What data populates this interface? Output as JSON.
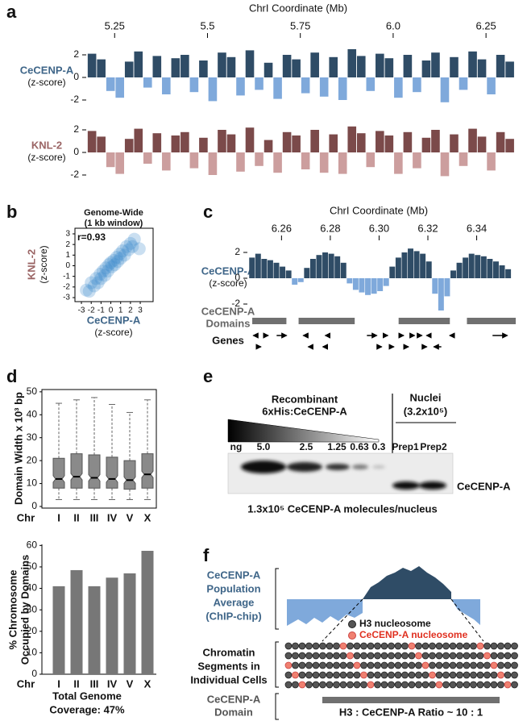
{
  "panel_labels": [
    "a",
    "b",
    "c",
    "d",
    "e",
    "f"
  ],
  "chart_data": [
    {
      "type": "track",
      "title": "ChrI Coordinate (Mb)",
      "xlim": [
        5.18,
        6.33
      ],
      "xticks": [
        5.25,
        5.5,
        5.75,
        {
          "value": 6,
          "label": "6.0"
        },
        6.25
      ],
      "ylim": [
        -3,
        3
      ],
      "yticks": [
        -2,
        0,
        2
      ],
      "x": [
        5.19,
        5.215,
        5.24,
        5.265,
        5.29,
        5.315,
        5.34,
        5.365,
        5.39,
        5.415,
        5.44,
        5.465,
        5.49,
        5.515,
        5.54,
        5.565,
        5.59,
        5.615,
        5.64,
        5.665,
        5.69,
        5.715,
        5.74,
        5.765,
        5.79,
        5.815,
        5.84,
        5.865,
        5.89,
        5.915,
        5.94,
        5.965,
        5.99,
        6.015,
        6.04,
        6.065,
        6.09,
        6.115,
        6.14,
        6.165,
        6.19,
        6.215,
        6.24,
        6.265,
        6.29,
        6.315
      ],
      "series": [
        {
          "name": "CeCENP-A",
          "unit": "(z-score)",
          "color": "#2f4c66",
          "neg_color": "#7fa9db",
          "label_color": "#3e6588",
          "values": [
            2.1,
            1.6,
            -1.2,
            -1.8,
            1.4,
            2.3,
            -0.9,
            1.9,
            -1.5,
            1.7,
            2.0,
            -1.3,
            1.5,
            -2.1,
            2.2,
            1.8,
            -1.6,
            2.4,
            -1.1,
            1.3,
            -1.9,
            2.0,
            1.6,
            -1.4,
            2.2,
            -1.7,
            1.8,
            -2.0,
            2.5,
            1.9,
            -1.2,
            2.1,
            1.7,
            -1.8,
            2.0,
            -1.3,
            1.5,
            2.2,
            -2.2,
            1.8,
            -1.1,
            2.3,
            1.6,
            -1.5,
            2.0,
            1.4
          ]
        },
        {
          "name": "KNL-2",
          "unit": "(z-score)",
          "color": "#7b4a4a",
          "neg_color": "#cc9e9e",
          "label_color": "#9a6464",
          "values": [
            1.9,
            1.4,
            -1.3,
            -1.9,
            1.2,
            2.1,
            -1.0,
            1.7,
            -1.6,
            1.5,
            1.8,
            -1.4,
            1.3,
            -2.0,
            2.0,
            1.6,
            -1.7,
            2.2,
            -1.2,
            1.1,
            -1.8,
            1.8,
            1.5,
            -1.5,
            2.0,
            -1.8,
            1.6,
            -1.9,
            2.3,
            1.7,
            -1.3,
            1.9,
            1.5,
            -1.9,
            1.8,
            -1.4,
            1.3,
            2.0,
            -2.1,
            1.6,
            -1.2,
            2.1,
            1.4,
            -1.6,
            1.8,
            1.2
          ]
        }
      ]
    },
    {
      "type": "scatter",
      "title": "Genome-Wide",
      "subtitle": "(1 kb window)",
      "annotation": "r=0.93",
      "xlabel": "CeCENP-A",
      "xlabel_unit": "(z-score)",
      "xlabel_color": "#3e6588",
      "ylabel": "KNL-2",
      "ylabel_unit": "(z-score)",
      "ylabel_color": "#9a6464",
      "xlim": [
        -3.66,
        4.31
      ],
      "ylim": [
        -3.38,
        3.53
      ],
      "xticks": [
        -3,
        -2,
        -1,
        0,
        1,
        2,
        3
      ],
      "yticks": [
        -3,
        -2,
        -1,
        0,
        1,
        2,
        3
      ],
      "color": "#3f8ccb",
      "x": [
        -2.5,
        -2.2,
        -2.0,
        -1.7,
        -1.5,
        -1.3,
        -1.1,
        -1.0,
        -0.8,
        -0.6,
        -0.5,
        -0.3,
        -0.2,
        0,
        0.1,
        0.3,
        0.4,
        0.6,
        0.7,
        0.9,
        1.0,
        1.2,
        1.4,
        1.6,
        1.8,
        2.0,
        2.2,
        2.4,
        2.9
      ],
      "y": [
        -2.3,
        -2.4,
        -1.6,
        -1.9,
        -1.2,
        -1.6,
        -0.8,
        -1.2,
        -0.5,
        -0.9,
        -0.2,
        -0.5,
        0.1,
        0.3,
        -0.1,
        0.5,
        0.1,
        0.8,
        0.4,
        1.1,
        0.7,
        1.4,
        1.0,
        1.8,
        1.5,
        2.1,
        1.8,
        2.5,
        1.6
      ]
    },
    {
      "type": "track",
      "title": "ChrI Coordinate (Mb)",
      "xlim": [
        6.247,
        6.356
      ],
      "xticks": [
        6.26,
        6.28,
        {
          "value": 6.3,
          "label": "6.30"
        },
        6.32,
        6.34
      ],
      "ylim": [
        -3,
        3
      ],
      "yticks": [
        -2,
        0,
        2
      ],
      "x": [
        6.248,
        6.2505,
        6.253,
        6.2555,
        6.258,
        6.2605,
        6.263,
        6.2655,
        6.268,
        6.2705,
        6.273,
        6.2755,
        6.278,
        6.2805,
        6.283,
        6.2855,
        6.288,
        6.2905,
        6.293,
        6.2955,
        6.298,
        6.3005,
        6.303,
        6.3055,
        6.308,
        6.3105,
        6.313,
        6.3155,
        6.318,
        6.3205,
        6.323,
        6.3255,
        6.328,
        6.3305,
        6.333,
        6.3355,
        6.338,
        6.3405,
        6.343,
        6.3455,
        6.348,
        6.3505,
        6.353
      ],
      "series": [
        {
          "name": "CeCENP-A",
          "unit": "(z-score)",
          "color": "#2f4c66",
          "neg_color": "#7fa9db",
          "label_color": "#3e6588",
          "values": [
            1.6,
            1.9,
            1.5,
            1.4,
            1.2,
            0.9,
            0.6,
            -0.5,
            -0.3,
            0.8,
            1.5,
            1.8,
            2.0,
            1.9,
            1.7,
            1.2,
            -0.4,
            -0.9,
            -1.1,
            -1.3,
            -1.2,
            -1.0,
            -0.6,
            0.9,
            1.6,
            2.0,
            2.3,
            2.1,
            1.9,
            1.3,
            -1.2,
            -2.5,
            -1.4,
            0.6,
            1.2,
            1.6,
            1.9,
            1.8,
            1.7,
            1.5,
            1.3,
            1.0,
            0.7
          ]
        }
      ],
      "domains": {
        "label": [
          "CeCENP-A",
          "Domains"
        ],
        "color": "#707070",
        "ranges": [
          [
            6.248,
            6.262
          ],
          [
            6.267,
            6.29
          ],
          [
            6.308,
            6.329
          ],
          [
            6.336,
            6.356
          ]
        ]
      },
      "genes": {
        "label": "Genes",
        "items": [
          {
            "start": 6.2495,
            "end": 6.2485
          },
          {
            "start": 6.2505,
            "end": 6.2515
          },
          {
            "start": 6.2525,
            "end": 6.2545
          },
          {
            "start": 6.258,
            "end": 6.262
          },
          {
            "start": 6.2705,
            "end": 6.269
          },
          {
            "start": 6.2725,
            "end": 6.271
          },
          {
            "start": 6.2795,
            "end": 6.278
          },
          {
            "start": 6.2785,
            "end": 6.277
          },
          {
            "start": 6.295,
            "end": 6.299
          },
          {
            "start": 6.299,
            "end": 6.301
          },
          {
            "start": 6.302,
            "end": 6.3035
          },
          {
            "start": 6.305,
            "end": 6.306
          },
          {
            "start": 6.309,
            "end": 6.31
          },
          {
            "start": 6.311,
            "end": 6.312
          },
          {
            "start": 6.3135,
            "end": 6.3145
          },
          {
            "start": 6.3165,
            "end": 6.3175
          },
          {
            "start": 6.3185,
            "end": 6.3195
          },
          {
            "start": 6.321,
            "end": 6.3195
          },
          {
            "start": 6.3255,
            "end": 6.3225
          },
          {
            "start": 6.33,
            "end": 6.329
          },
          {
            "start": 6.3465,
            "end": 6.3525
          }
        ]
      }
    },
    {
      "type": "box",
      "ylabel": "Domain Width x 10³ bp",
      "axis_label": "Chr",
      "categories": [
        "I",
        "II",
        "III",
        "IV",
        "V",
        "X"
      ],
      "ylim": [
        -0.7,
        51
      ],
      "yticks": [
        0,
        10,
        20,
        30,
        40,
        50
      ],
      "color": "#8a8a8a",
      "boxes": [
        {
          "low": 3,
          "q1": 8,
          "median": 12,
          "q3": 21,
          "high": 45
        },
        {
          "low": 3,
          "q1": 8,
          "median": 13,
          "q3": 23,
          "high": 46.5
        },
        {
          "low": 3,
          "q1": 8,
          "median": 12.5,
          "q3": 22.5,
          "high": 47.5
        },
        {
          "low": 3,
          "q1": 8,
          "median": 12,
          "q3": 21.5,
          "high": 44.5
        },
        {
          "low": 3,
          "q1": 7.5,
          "median": 11.5,
          "q3": 20,
          "high": 41
        },
        {
          "low": 3,
          "q1": 8,
          "median": 14,
          "q3": 23,
          "high": 46.5
        }
      ]
    },
    {
      "type": "bar",
      "ylabel": [
        "% Chromosome",
        "Occupied by Domains"
      ],
      "axis_label": "Chr",
      "categories": [
        "I",
        "II",
        "III",
        "IV",
        "V",
        "X"
      ],
      "values": [
        41,
        48.5,
        41,
        45,
        47,
        57.5
      ],
      "ylim": [
        0,
        60.5
      ],
      "yticks": [
        0,
        10,
        20,
        30,
        40,
        50,
        60
      ],
      "color": "#777777",
      "caption": [
        "Total Genome",
        "Coverage: 47%"
      ]
    }
  ],
  "blot": {
    "group1": [
      "Recombinant",
      "6xHis:CeCENP-A"
    ],
    "group2": [
      "Nuclei",
      "(3.2x10⁵)"
    ],
    "unit": "ng",
    "lanes": [
      "5.0",
      "2.5",
      "1.25",
      "0.63",
      "0.3",
      "Prep1",
      "Prep2"
    ],
    "band_label": "CeCENP-A",
    "caption": "1.3x10⁵ CeCENP-A molecules/nucleus"
  },
  "diagram": {
    "profile_label": [
      "CeCENP-A",
      "Population",
      "Average",
      "(ChIP-chip)"
    ],
    "legend": [
      "H3 nucleosome",
      "CeCENP-A nucleosome"
    ],
    "segments_label": [
      "Chromatin",
      "Segments in",
      "Individual Cells"
    ],
    "domain_label": [
      "CeCENP-A",
      "Domain"
    ],
    "ratio": "H3 : CeCENP-A Ratio ~ 10 : 1"
  }
}
